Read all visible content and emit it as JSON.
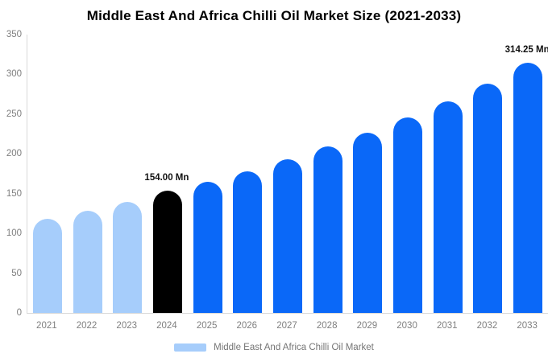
{
  "title": "Middle East And Africa Chilli Oil Market Size (2021-2033)",
  "colors": {
    "background": "#ffffff",
    "historical_bar": "#a6cdfb",
    "highlight_bar": "#000000",
    "forecast_bar": "#0a68f8",
    "axis_line": "#d9d9d9",
    "axis_text": "#7f7f7f",
    "legend_text": "#757575",
    "annotation_text": "#111111",
    "title_text": "#000000"
  },
  "chart_data": {
    "type": "bar",
    "title": "Middle East And Africa Chilli Oil Market Size (2021-2033)",
    "xlabel": "",
    "ylabel": "",
    "unit": "Mn",
    "categories": [
      "2021",
      "2022",
      "2023",
      "2024",
      "2025",
      "2026",
      "2027",
      "2028",
      "2029",
      "2030",
      "2031",
      "2032",
      "2033"
    ],
    "values": [
      118,
      128,
      140,
      154,
      165,
      178,
      193,
      209,
      227,
      246,
      266,
      288,
      314.25
    ],
    "bar_colors": [
      "#a6cdfb",
      "#a6cdfb",
      "#a6cdfb",
      "#000000",
      "#0a68f8",
      "#0a68f8",
      "#0a68f8",
      "#0a68f8",
      "#0a68f8",
      "#0a68f8",
      "#0a68f8",
      "#0a68f8",
      "#0a68f8"
    ],
    "value_labels": [
      {
        "index": 3,
        "text": "154.00 Mn"
      },
      {
        "index": 12,
        "text": "314.25 Mn"
      }
    ],
    "ylim": [
      0,
      350
    ],
    "yticks": [
      0,
      50,
      100,
      150,
      200,
      250,
      300,
      350
    ],
    "grid": false,
    "legend_position": "bottom",
    "legend": [
      {
        "label": "Middle East And Africa Chilli Oil Market",
        "color": "#a6cdfb"
      }
    ]
  }
}
